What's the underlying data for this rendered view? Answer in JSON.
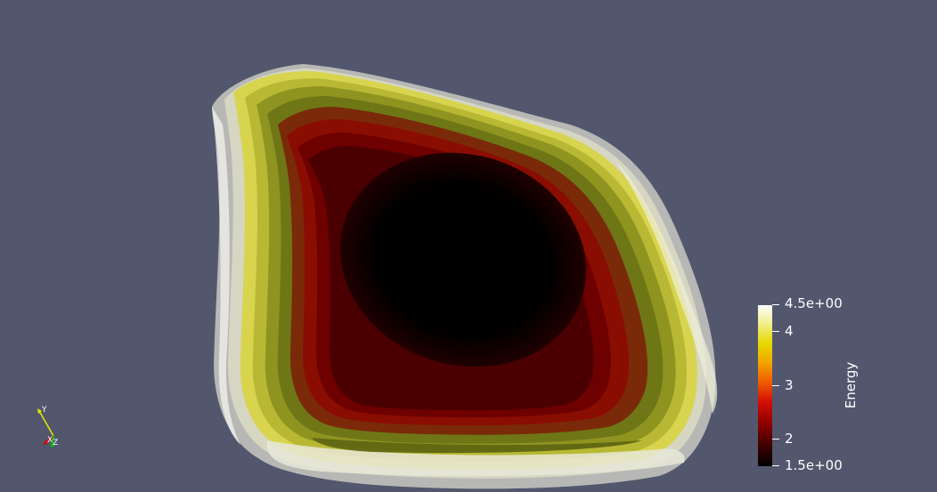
{
  "scene": {
    "background": "#52576e",
    "render": "nested iso-surfaces colored by Energy"
  },
  "colorbar": {
    "title": "Energy",
    "max_label": "4.5e+00",
    "min_label": "1.5e+00",
    "ticks": [
      "4",
      "3",
      "2"
    ],
    "colors": [
      "#000000",
      "#8a0000",
      "#d40f00",
      "#f3a300",
      "#e6d800",
      "#ffffff"
    ]
  },
  "axes": {
    "y_label": "Y",
    "x_label": "X",
    "z_label": "Z"
  }
}
